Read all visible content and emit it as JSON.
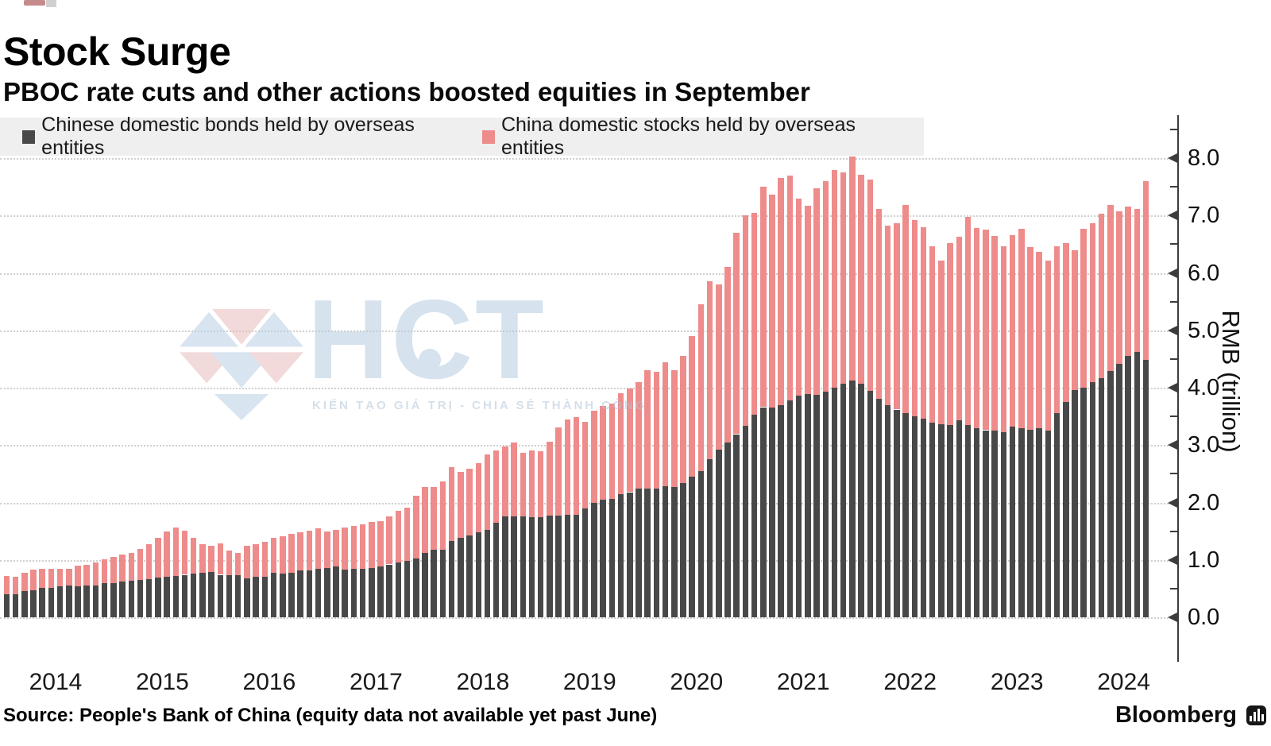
{
  "header": {
    "title": "Stock Surge",
    "subtitle": "PBOC rate cuts and other actions boosted equities in September"
  },
  "legend": {
    "items": [
      {
        "label": "Chinese domestic bonds held by overseas entities",
        "color": "#484848"
      },
      {
        "label": "China domestic stocks held by overseas entities",
        "color": "#ee8b8b"
      }
    ]
  },
  "watermark": {
    "text": "HCT",
    "tagline": "KIẾN TẠO GIÁ TRỊ - CHIA SẺ THÀNH CÔNG"
  },
  "footer": {
    "source": "Source: People's Bank of China (equity data not available yet past June)",
    "brand": "Bloomberg"
  },
  "chart_data": {
    "type": "bar",
    "stacked": true,
    "title": "Stock Surge",
    "subtitle": "PBOC rate cuts and other actions boosted equities in September",
    "ylabel": "RMB (trillion)",
    "ylim": [
      0,
      8.5
    ],
    "ytick_step": 1.0,
    "yticks": [
      "0.0",
      "1.0",
      "2.0",
      "3.0",
      "4.0",
      "5.0",
      "6.0",
      "7.0",
      "8.0"
    ],
    "grid": "horizontal dotted",
    "legend_position": "top",
    "frequency": "monthly",
    "x_start": "2014-01",
    "x_end": "2024-09",
    "x_years": [
      2014,
      2015,
      2016,
      2017,
      2018,
      2019,
      2020,
      2021,
      2022,
      2023,
      2024
    ],
    "colors": {
      "bonds": "#484848",
      "stocks": "#ee8b8b",
      "legend_bg": "#efefef"
    },
    "series": [
      {
        "name": "Chinese domestic bonds held by overseas entities",
        "color": "#484848",
        "values": [
          0.4,
          0.4,
          0.46,
          0.47,
          0.51,
          0.51,
          0.54,
          0.55,
          0.54,
          0.56,
          0.56,
          0.59,
          0.6,
          0.62,
          0.64,
          0.65,
          0.67,
          0.69,
          0.71,
          0.72,
          0.74,
          0.76,
          0.78,
          0.79,
          0.74,
          0.73,
          0.74,
          0.68,
          0.71,
          0.7,
          0.78,
          0.76,
          0.78,
          0.82,
          0.82,
          0.84,
          0.86,
          0.89,
          0.83,
          0.84,
          0.84,
          0.86,
          0.89,
          0.92,
          0.95,
          0.99,
          1.03,
          1.12,
          1.18,
          1.18,
          1.33,
          1.38,
          1.42,
          1.48,
          1.52,
          1.65,
          1.76,
          1.76,
          1.76,
          1.75,
          1.75,
          1.77,
          1.77,
          1.78,
          1.79,
          1.9,
          1.99,
          2.05,
          2.06,
          2.15,
          2.18,
          2.24,
          2.24,
          2.24,
          2.29,
          2.27,
          2.34,
          2.45,
          2.55,
          2.75,
          2.92,
          3.05,
          3.19,
          3.34,
          3.53,
          3.66,
          3.66,
          3.7,
          3.78,
          3.86,
          3.89,
          3.87,
          3.93,
          4.0,
          4.07,
          4.13,
          4.07,
          3.95,
          3.81,
          3.69,
          3.62,
          3.56,
          3.5,
          3.46,
          3.39,
          3.36,
          3.35,
          3.43,
          3.35,
          3.29,
          3.26,
          3.25,
          3.22,
          3.32,
          3.29,
          3.27,
          3.29,
          3.25,
          3.56,
          3.75,
          3.96,
          4.0,
          4.1,
          4.16,
          4.29,
          4.42,
          4.55,
          4.62,
          4.49
        ]
      },
      {
        "name": "China domestic stocks held by overseas entities",
        "color": "#ee8b8b",
        "values": [
          0.32,
          0.31,
          0.32,
          0.36,
          0.33,
          0.34,
          0.31,
          0.29,
          0.36,
          0.36,
          0.39,
          0.42,
          0.45,
          0.47,
          0.48,
          0.54,
          0.61,
          0.69,
          0.78,
          0.85,
          0.77,
          0.62,
          0.5,
          0.45,
          0.55,
          0.43,
          0.38,
          0.56,
          0.57,
          0.61,
          0.6,
          0.65,
          0.67,
          0.66,
          0.69,
          0.71,
          0.64,
          0.63,
          0.73,
          0.75,
          0.78,
          0.8,
          0.79,
          0.84,
          0.9,
          0.92,
          1.09,
          1.15,
          1.09,
          1.19,
          1.28,
          1.16,
          1.17,
          1.2,
          1.32,
          1.26,
          1.21,
          1.28,
          1.11,
          1.16,
          1.14,
          1.29,
          1.54,
          1.67,
          1.7,
          1.5,
          1.61,
          1.63,
          1.67,
          1.75,
          1.8,
          1.86,
          2.06,
          2.04,
          2.16,
          2.03,
          2.21,
          2.45,
          2.9,
          3.1,
          2.88,
          3.05,
          3.51,
          3.66,
          3.52,
          3.84,
          3.71,
          3.96,
          3.92,
          3.43,
          3.28,
          3.6,
          3.67,
          3.79,
          3.68,
          3.9,
          3.64,
          3.68,
          3.31,
          3.14,
          3.24,
          3.63,
          3.42,
          3.34,
          3.08,
          2.85,
          3.17,
          3.2,
          3.63,
          3.49,
          3.49,
          3.39,
          3.24,
          3.34,
          3.48,
          3.18,
          3.08,
          2.97,
          2.9,
          2.77,
          2.44,
          2.77,
          2.76,
          2.87,
          2.89,
          2.66,
          2.6,
          2.5,
          3.11
        ]
      }
    ]
  }
}
